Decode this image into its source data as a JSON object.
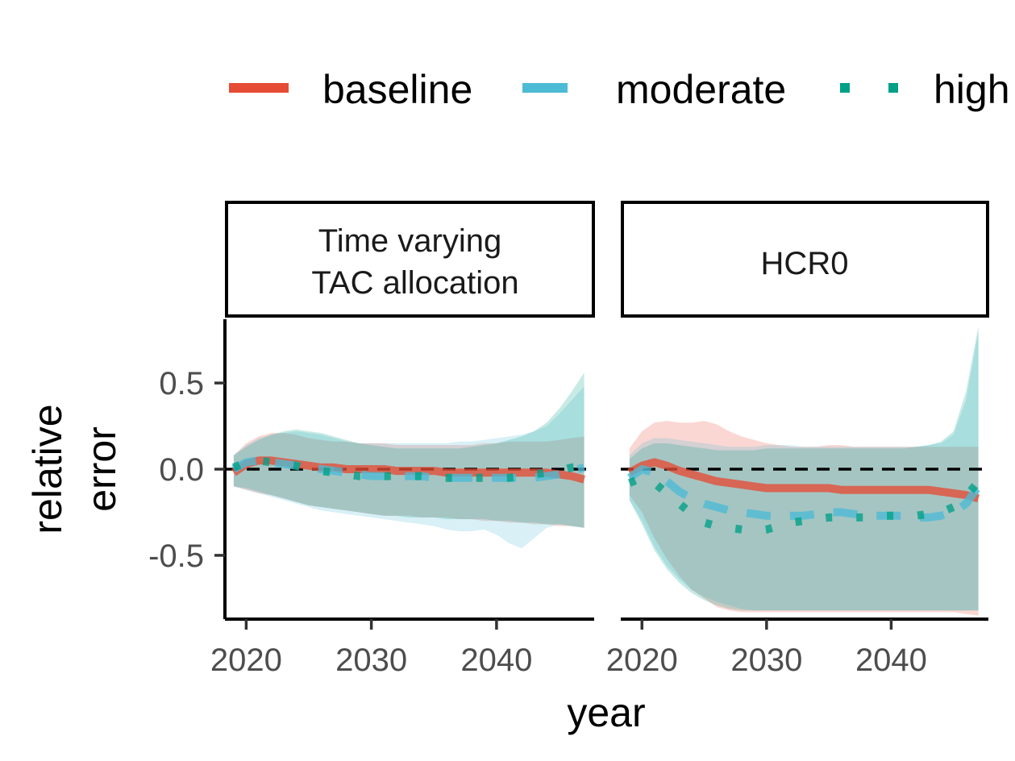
{
  "chart_data": {
    "type": "line",
    "xlabel": "year",
    "ylabel": [
      "relative",
      "error"
    ],
    "xlim": [
      2018.3,
      2047.8
    ],
    "ylim": [
      -0.87,
      0.87
    ],
    "x_ticks": [
      2020,
      2030,
      2040
    ],
    "x_tick_labels": [
      "2020",
      "2030",
      "2040"
    ],
    "y_ticks": [
      0.5,
      0.0,
      -0.5
    ],
    "y_tick_labels": [
      "0.5",
      "0.0",
      "-0.5"
    ],
    "reference_line": 0,
    "grid": false,
    "legend": {
      "placement": "top",
      "entries": [
        {
          "label": "baseline",
          "color": "#E64B35",
          "style": "solid"
        },
        {
          "label": "moderate",
          "color": "#4DBBD5",
          "style": "dashed"
        },
        {
          "label": "high",
          "color": "#00A087",
          "style": "dotted"
        }
      ]
    },
    "panels": [
      {
        "strip": [
          "Time varying",
          "TAC allocation"
        ],
        "series": [
          {
            "name": "baseline",
            "color": "#E64B35",
            "style": "solid",
            "x": [
              2019,
              2020,
              2021,
              2022,
              2023,
              2024,
              2025,
              2026,
              2027,
              2028,
              2029,
              2030,
              2031,
              2032,
              2033,
              2034,
              2035,
              2036,
              2037,
              2038,
              2039,
              2040,
              2041,
              2042,
              2043,
              2044,
              2045,
              2046,
              2047
            ],
            "y": [
              -0.02,
              0.03,
              0.05,
              0.05,
              0.04,
              0.03,
              0.02,
              0.01,
              0.01,
              0.0,
              0.0,
              0.0,
              0.0,
              -0.01,
              -0.01,
              -0.01,
              -0.01,
              -0.02,
              -0.02,
              -0.02,
              -0.02,
              -0.02,
              -0.02,
              -0.02,
              -0.02,
              -0.02,
              -0.03,
              -0.04,
              -0.06
            ],
            "lower": [
              -0.1,
              -0.12,
              -0.14,
              -0.15,
              -0.17,
              -0.19,
              -0.21,
              -0.22,
              -0.23,
              -0.24,
              -0.25,
              -0.26,
              -0.27,
              -0.27,
              -0.27,
              -0.28,
              -0.28,
              -0.28,
              -0.29,
              -0.29,
              -0.3,
              -0.3,
              -0.31,
              -0.31,
              -0.32,
              -0.32,
              -0.33,
              -0.33,
              -0.34
            ],
            "upper": [
              0.08,
              0.15,
              0.19,
              0.21,
              0.21,
              0.2,
              0.18,
              0.17,
              0.16,
              0.16,
              0.15,
              0.15,
              0.15,
              0.14,
              0.14,
              0.14,
              0.14,
              0.14,
              0.14,
              0.14,
              0.15,
              0.15,
              0.16,
              0.16,
              0.16,
              0.16,
              0.17,
              0.18,
              0.19
            ]
          },
          {
            "name": "moderate",
            "color": "#4DBBD5",
            "style": "dashed",
            "x": [
              2019,
              2020,
              2021,
              2022,
              2023,
              2024,
              2025,
              2026,
              2027,
              2028,
              2029,
              2030,
              2031,
              2032,
              2033,
              2034,
              2035,
              2036,
              2037,
              2038,
              2039,
              2040,
              2041,
              2042,
              2043,
              2044,
              2045,
              2046,
              2047
            ],
            "y": [
              0.0,
              0.04,
              0.05,
              0.04,
              0.03,
              0.02,
              0.01,
              0.0,
              -0.01,
              -0.02,
              -0.03,
              -0.04,
              -0.04,
              -0.04,
              -0.04,
              -0.04,
              -0.05,
              -0.05,
              -0.05,
              -0.05,
              -0.05,
              -0.05,
              -0.05,
              -0.05,
              -0.05,
              -0.04,
              -0.03,
              -0.01,
              0.01
            ],
            "lower": [
              -0.1,
              -0.12,
              -0.14,
              -0.16,
              -0.18,
              -0.2,
              -0.22,
              -0.24,
              -0.25,
              -0.26,
              -0.27,
              -0.28,
              -0.29,
              -0.3,
              -0.31,
              -0.32,
              -0.33,
              -0.35,
              -0.36,
              -0.36,
              -0.35,
              -0.38,
              -0.43,
              -0.46,
              -0.4,
              -0.34,
              -0.32,
              -0.33,
              -0.34
            ],
            "upper": [
              0.08,
              0.14,
              0.18,
              0.2,
              0.21,
              0.22,
              0.21,
              0.2,
              0.18,
              0.16,
              0.15,
              0.15,
              0.15,
              0.15,
              0.15,
              0.15,
              0.15,
              0.15,
              0.16,
              0.16,
              0.17,
              0.18,
              0.19,
              0.2,
              0.22,
              0.25,
              0.32,
              0.4,
              0.48
            ]
          },
          {
            "name": "high",
            "color": "#00A087",
            "style": "dotted",
            "x": [
              2019,
              2020,
              2021,
              2022,
              2023,
              2024,
              2025,
              2026,
              2027,
              2028,
              2029,
              2030,
              2031,
              2032,
              2033,
              2034,
              2035,
              2036,
              2037,
              2038,
              2039,
              2040,
              2041,
              2042,
              2043,
              2044,
              2045,
              2046,
              2047
            ],
            "y": [
              0.01,
              0.04,
              0.05,
              0.04,
              0.03,
              0.02,
              0.0,
              -0.01,
              -0.02,
              -0.03,
              -0.04,
              -0.04,
              -0.04,
              -0.04,
              -0.04,
              -0.04,
              -0.05,
              -0.05,
              -0.05,
              -0.05,
              -0.05,
              -0.05,
              -0.05,
              -0.04,
              -0.03,
              -0.02,
              -0.01,
              0.01,
              0.02
            ],
            "lower": [
              -0.1,
              -0.11,
              -0.13,
              -0.15,
              -0.17,
              -0.19,
              -0.21,
              -0.22,
              -0.23,
              -0.24,
              -0.25,
              -0.26,
              -0.27,
              -0.27,
              -0.28,
              -0.28,
              -0.28,
              -0.29,
              -0.29,
              -0.29,
              -0.29,
              -0.3,
              -0.3,
              -0.31,
              -0.31,
              -0.32,
              -0.32,
              -0.33,
              -0.34
            ],
            "upper": [
              0.08,
              0.13,
              0.17,
              0.2,
              0.22,
              0.23,
              0.22,
              0.21,
              0.19,
              0.17,
              0.15,
              0.14,
              0.13,
              0.12,
              0.12,
              0.12,
              0.12,
              0.12,
              0.12,
              0.13,
              0.14,
              0.15,
              0.17,
              0.19,
              0.22,
              0.27,
              0.35,
              0.45,
              0.56
            ]
          }
        ]
      },
      {
        "strip": [
          "HCR0"
        ],
        "series": [
          {
            "name": "baseline",
            "color": "#E64B35",
            "style": "solid",
            "x": [
              2019,
              2020,
              2021,
              2022,
              2023,
              2024,
              2025,
              2026,
              2027,
              2028,
              2029,
              2030,
              2031,
              2032,
              2033,
              2034,
              2035,
              2036,
              2037,
              2038,
              2039,
              2040,
              2041,
              2042,
              2043,
              2044,
              2045,
              2046,
              2047
            ],
            "y": [
              -0.02,
              0.02,
              0.04,
              0.02,
              -0.01,
              -0.03,
              -0.05,
              -0.07,
              -0.08,
              -0.09,
              -0.1,
              -0.11,
              -0.11,
              -0.11,
              -0.11,
              -0.11,
              -0.11,
              -0.12,
              -0.12,
              -0.12,
              -0.12,
              -0.12,
              -0.12,
              -0.12,
              -0.12,
              -0.13,
              -0.14,
              -0.15,
              -0.17
            ],
            "lower": [
              -0.15,
              -0.25,
              -0.4,
              -0.52,
              -0.62,
              -0.7,
              -0.75,
              -0.8,
              -0.82,
              -0.83,
              -0.83,
              -0.83,
              -0.83,
              -0.83,
              -0.83,
              -0.83,
              -0.83,
              -0.83,
              -0.83,
              -0.83,
              -0.83,
              -0.83,
              -0.83,
              -0.83,
              -0.83,
              -0.83,
              -0.83,
              -0.84,
              -0.85
            ],
            "upper": [
              0.12,
              0.22,
              0.27,
              0.28,
              0.27,
              0.27,
              0.28,
              0.26,
              0.22,
              0.19,
              0.17,
              0.15,
              0.14,
              0.13,
              0.13,
              0.13,
              0.14,
              0.14,
              0.13,
              0.13,
              0.13,
              0.13,
              0.13,
              0.13,
              0.13,
              0.13,
              0.13,
              0.13,
              0.13
            ]
          },
          {
            "name": "moderate",
            "color": "#4DBBD5",
            "style": "dashed",
            "x": [
              2019,
              2020,
              2021,
              2022,
              2023,
              2024,
              2025,
              2026,
              2027,
              2028,
              2029,
              2030,
              2031,
              2032,
              2033,
              2034,
              2035,
              2036,
              2037,
              2038,
              2039,
              2040,
              2041,
              2042,
              2043,
              2044,
              2045,
              2046,
              2047
            ],
            "y": [
              -0.05,
              0.0,
              -0.02,
              -0.07,
              -0.13,
              -0.17,
              -0.2,
              -0.22,
              -0.24,
              -0.25,
              -0.26,
              -0.27,
              -0.27,
              -0.27,
              -0.27,
              -0.26,
              -0.25,
              -0.25,
              -0.26,
              -0.27,
              -0.27,
              -0.27,
              -0.27,
              -0.28,
              -0.28,
              -0.27,
              -0.25,
              -0.2,
              -0.1
            ],
            "lower": [
              -0.18,
              -0.3,
              -0.45,
              -0.56,
              -0.64,
              -0.7,
              -0.74,
              -0.77,
              -0.79,
              -0.81,
              -0.82,
              -0.82,
              -0.82,
              -0.82,
              -0.82,
              -0.82,
              -0.82,
              -0.82,
              -0.82,
              -0.82,
              -0.82,
              -0.82,
              -0.82,
              -0.82,
              -0.82,
              -0.82,
              -0.82,
              -0.82,
              -0.82
            ],
            "upper": [
              0.08,
              0.15,
              0.18,
              0.18,
              0.17,
              0.16,
              0.15,
              0.14,
              0.13,
              0.13,
              0.13,
              0.14,
              0.14,
              0.14,
              0.13,
              0.13,
              0.13,
              0.13,
              0.13,
              0.13,
              0.13,
              0.13,
              0.13,
              0.13,
              0.14,
              0.15,
              0.2,
              0.4,
              0.8
            ]
          },
          {
            "name": "high",
            "color": "#00A087",
            "style": "dotted",
            "x": [
              2019,
              2020,
              2021,
              2022,
              2023,
              2024,
              2025,
              2026,
              2027,
              2028,
              2029,
              2030,
              2031,
              2032,
              2033,
              2034,
              2035,
              2036,
              2037,
              2038,
              2039,
              2040,
              2041,
              2042,
              2043,
              2044,
              2045,
              2046,
              2047
            ],
            "y": [
              -0.08,
              -0.05,
              -0.08,
              -0.14,
              -0.2,
              -0.26,
              -0.31,
              -0.33,
              -0.34,
              -0.35,
              -0.36,
              -0.35,
              -0.33,
              -0.31,
              -0.3,
              -0.29,
              -0.28,
              -0.28,
              -0.28,
              -0.28,
              -0.27,
              -0.27,
              -0.27,
              -0.27,
              -0.26,
              -0.25,
              -0.22,
              -0.16,
              -0.07
            ],
            "lower": [
              -0.18,
              -0.32,
              -0.47,
              -0.58,
              -0.66,
              -0.72,
              -0.76,
              -0.79,
              -0.81,
              -0.82,
              -0.82,
              -0.82,
              -0.82,
              -0.82,
              -0.82,
              -0.82,
              -0.82,
              -0.82,
              -0.82,
              -0.82,
              -0.82,
              -0.82,
              -0.82,
              -0.82,
              -0.82,
              -0.82,
              -0.82,
              -0.82,
              -0.82
            ],
            "upper": [
              0.06,
              0.12,
              0.15,
              0.15,
              0.14,
              0.13,
              0.12,
              0.11,
              0.11,
              0.11,
              0.11,
              0.12,
              0.12,
              0.12,
              0.12,
              0.12,
              0.12,
              0.12,
              0.12,
              0.12,
              0.12,
              0.12,
              0.12,
              0.13,
              0.14,
              0.16,
              0.22,
              0.45,
              0.83
            ]
          }
        ]
      }
    ]
  }
}
